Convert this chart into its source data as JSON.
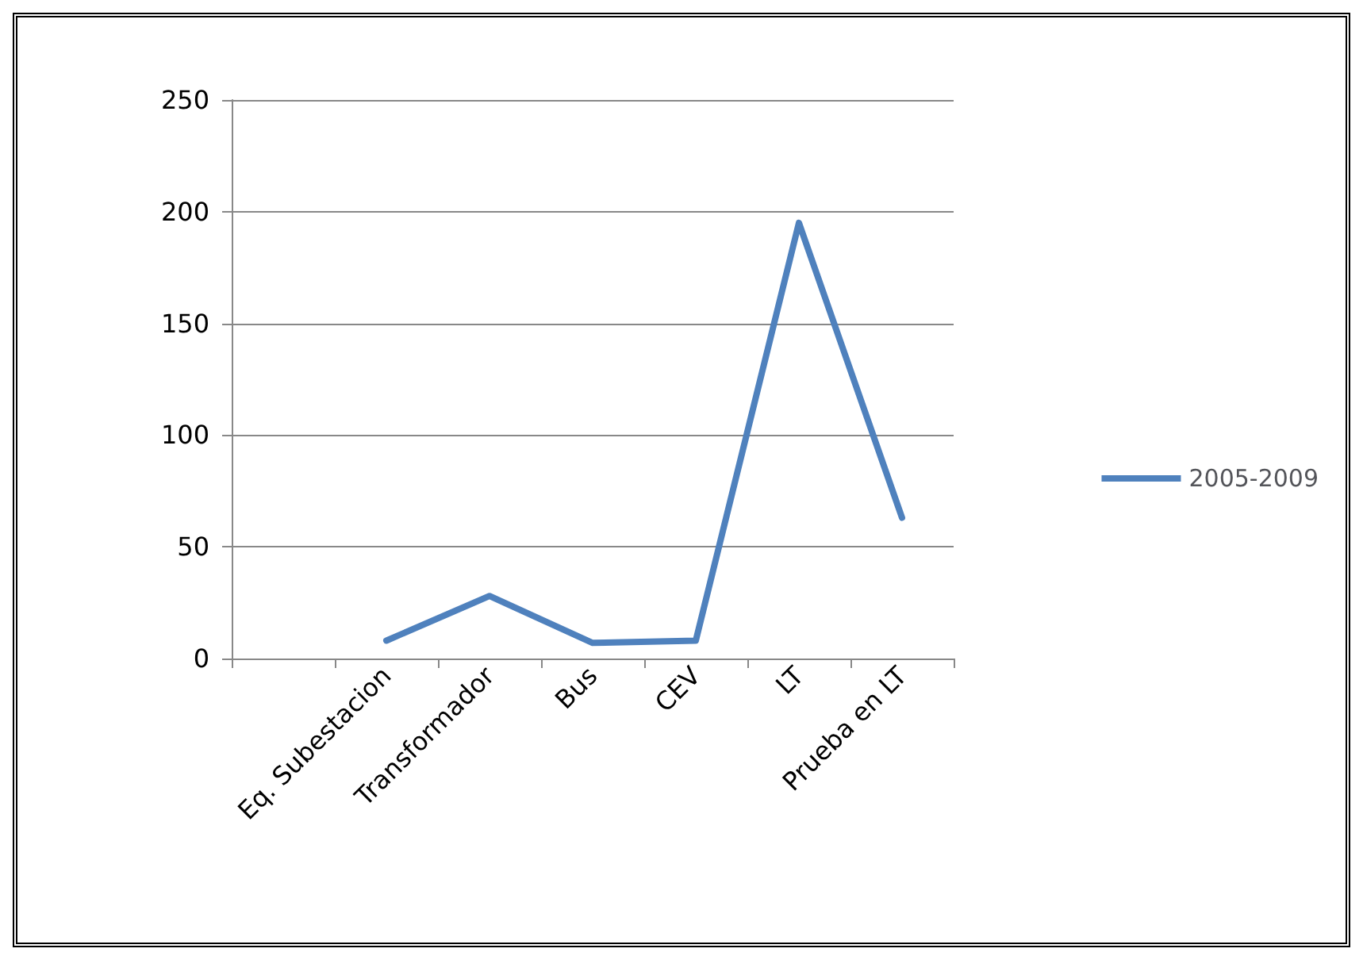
{
  "chart_data": {
    "type": "line",
    "categories": [
      null,
      "Eq. Subestacion",
      "Transformador",
      "Bus",
      "CEV",
      "LT",
      "Prueba en LT"
    ],
    "series": [
      {
        "name": "2005-2009",
        "color": "#4f81bd",
        "values": [
          null,
          8,
          28,
          7,
          8,
          195,
          63
        ]
      }
    ],
    "ylim": [
      0,
      250
    ],
    "yticks": [
      0,
      50,
      100,
      150,
      200,
      250
    ],
    "grid": "y",
    "legend": "right",
    "marker": "none",
    "line_style": "solid"
  }
}
